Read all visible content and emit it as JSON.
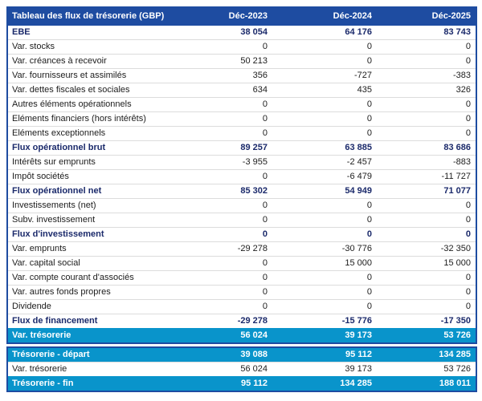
{
  "table": {
    "title": "Tableau des flux de trésorerie (GBP)",
    "columns": [
      "Déc-2023",
      "Déc-2024",
      "Déc-2025"
    ],
    "rows": [
      {
        "label": "EBE",
        "values": [
          "38 054",
          "64 176",
          "83 743"
        ],
        "style": "bold"
      },
      {
        "label": "Var. stocks",
        "values": [
          "0",
          "0",
          "0"
        ],
        "style": "normal"
      },
      {
        "label": "Var. créances à recevoir",
        "values": [
          "50 213",
          "0",
          "0"
        ],
        "style": "normal"
      },
      {
        "label": "Var. fournisseurs et assimilés",
        "values": [
          "356",
          "-727",
          "-383"
        ],
        "style": "normal"
      },
      {
        "label": "Var. dettes fiscales et sociales",
        "values": [
          "634",
          "435",
          "326"
        ],
        "style": "normal"
      },
      {
        "label": "Autres éléments opérationnels",
        "values": [
          "0",
          "0",
          "0"
        ],
        "style": "normal"
      },
      {
        "label": "Eléments financiers (hors intérêts)",
        "values": [
          "0",
          "0",
          "0"
        ],
        "style": "normal"
      },
      {
        "label": "Eléments exceptionnels",
        "values": [
          "0",
          "0",
          "0"
        ],
        "style": "normal"
      },
      {
        "label": "Flux opérationnel brut",
        "values": [
          "89 257",
          "63 885",
          "83 686"
        ],
        "style": "bold"
      },
      {
        "label": "Intérêts sur emprunts",
        "values": [
          "-3 955",
          "-2 457",
          "-883"
        ],
        "style": "normal"
      },
      {
        "label": "Impôt sociétés",
        "values": [
          "0",
          "-6 479",
          "-11 727"
        ],
        "style": "normal"
      },
      {
        "label": "Flux opérationnel net",
        "values": [
          "85 302",
          "54 949",
          "71 077"
        ],
        "style": "bold"
      },
      {
        "label": "Investissements (net)",
        "values": [
          "0",
          "0",
          "0"
        ],
        "style": "normal"
      },
      {
        "label": "Subv. investissement",
        "values": [
          "0",
          "0",
          "0"
        ],
        "style": "normal"
      },
      {
        "label": "Flux d'investissement",
        "values": [
          "0",
          "0",
          "0"
        ],
        "style": "bold"
      },
      {
        "label": "Var. emprunts",
        "values": [
          "-29 278",
          "-30 776",
          "-32 350"
        ],
        "style": "normal"
      },
      {
        "label": "Var. capital social",
        "values": [
          "0",
          "15 000",
          "15 000"
        ],
        "style": "normal"
      },
      {
        "label": "Var. compte courant d'associés",
        "values": [
          "0",
          "0",
          "0"
        ],
        "style": "normal"
      },
      {
        "label": "Var. autres fonds propres",
        "values": [
          "0",
          "0",
          "0"
        ],
        "style": "normal"
      },
      {
        "label": "Dividende",
        "values": [
          "0",
          "0",
          "0"
        ],
        "style": "normal"
      },
      {
        "label": "Flux de financement",
        "values": [
          "-29 278",
          "-15 776",
          "-17 350"
        ],
        "style": "bold"
      },
      {
        "label": "Var. trésorerie",
        "values": [
          "56 024",
          "39 173",
          "53 726"
        ],
        "style": "highlight"
      }
    ],
    "summary_rows": [
      {
        "label": "Trésorerie - départ",
        "values": [
          "39 088",
          "95 112",
          "134 285"
        ],
        "style": "highlight"
      },
      {
        "label": "Var. trésorerie",
        "values": [
          "56 024",
          "39 173",
          "53 726"
        ],
        "style": "normal"
      },
      {
        "label": "Trésorerie - fin",
        "values": [
          "95 112",
          "134 285",
          "188 011"
        ],
        "style": "highlight"
      }
    ],
    "colors": {
      "header_bg": "#1E4CA1",
      "header_text": "#FFFFFF",
      "bold_text": "#1B2A6B",
      "normal_text": "#1C1C1C",
      "highlight_bg": "#0994CB",
      "highlight_text": "#FFFFFF",
      "border": "#1E4CA1",
      "row_divider": "#DCDCDC"
    }
  },
  "chart_data": {
    "type": "table",
    "title": "Tableau des flux de trésorerie (GBP)",
    "currency": "GBP",
    "columns": [
      "Déc-2023",
      "Déc-2024",
      "Déc-2025"
    ],
    "rows": [
      {
        "label": "EBE",
        "values": [
          38054,
          64176,
          83743
        ]
      },
      {
        "label": "Var. stocks",
        "values": [
          0,
          0,
          0
        ]
      },
      {
        "label": "Var. créances à recevoir",
        "values": [
          50213,
          0,
          0
        ]
      },
      {
        "label": "Var. fournisseurs et assimilés",
        "values": [
          356,
          -727,
          -383
        ]
      },
      {
        "label": "Var. dettes fiscales et sociales",
        "values": [
          634,
          435,
          326
        ]
      },
      {
        "label": "Autres éléments opérationnels",
        "values": [
          0,
          0,
          0
        ]
      },
      {
        "label": "Eléments financiers (hors intérêts)",
        "values": [
          0,
          0,
          0
        ]
      },
      {
        "label": "Eléments exceptionnels",
        "values": [
          0,
          0,
          0
        ]
      },
      {
        "label": "Flux opérationnel brut",
        "values": [
          89257,
          63885,
          83686
        ]
      },
      {
        "label": "Intérêts sur emprunts",
        "values": [
          -3955,
          -2457,
          -883
        ]
      },
      {
        "label": "Impôt sociétés",
        "values": [
          0,
          -6479,
          -11727
        ]
      },
      {
        "label": "Flux opérationnel net",
        "values": [
          85302,
          54949,
          71077
        ]
      },
      {
        "label": "Investissements (net)",
        "values": [
          0,
          0,
          0
        ]
      },
      {
        "label": "Subv. investissement",
        "values": [
          0,
          0,
          0
        ]
      },
      {
        "label": "Flux d'investissement",
        "values": [
          0,
          0,
          0
        ]
      },
      {
        "label": "Var. emprunts",
        "values": [
          -29278,
          -30776,
          -32350
        ]
      },
      {
        "label": "Var. capital social",
        "values": [
          0,
          15000,
          15000
        ]
      },
      {
        "label": "Var. compte courant d'associés",
        "values": [
          0,
          0,
          0
        ]
      },
      {
        "label": "Var. autres fonds propres",
        "values": [
          0,
          0,
          0
        ]
      },
      {
        "label": "Dividende",
        "values": [
          0,
          0,
          0
        ]
      },
      {
        "label": "Flux de financement",
        "values": [
          -29278,
          -15776,
          -17350
        ]
      },
      {
        "label": "Var. trésorerie",
        "values": [
          56024,
          39173,
          53726
        ]
      },
      {
        "label": "Trésorerie - départ",
        "values": [
          39088,
          95112,
          134285
        ]
      },
      {
        "label": "Var. trésorerie",
        "values": [
          56024,
          39173,
          53726
        ]
      },
      {
        "label": "Trésorerie - fin",
        "values": [
          95112,
          134285,
          188011
        ]
      }
    ]
  }
}
